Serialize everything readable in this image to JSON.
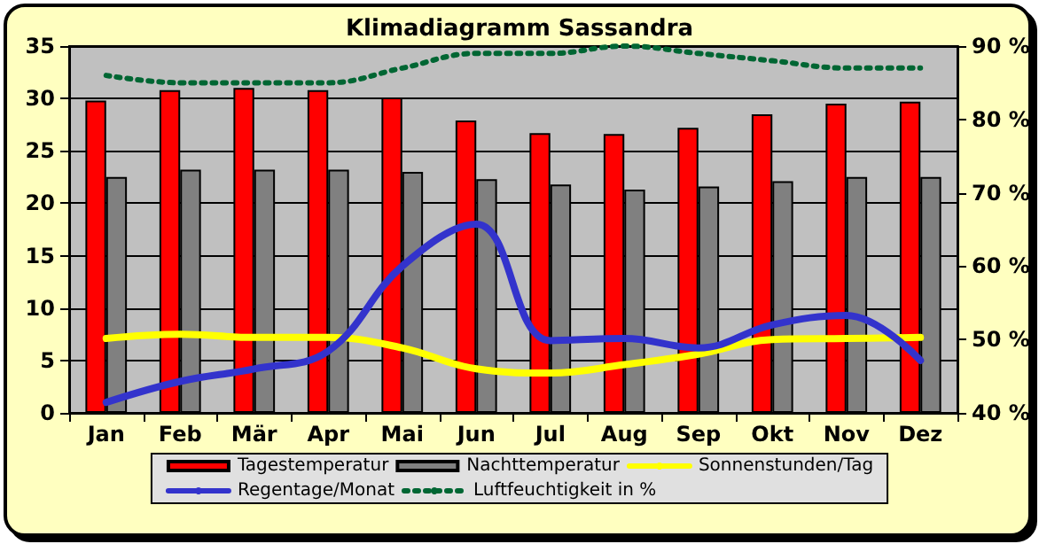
{
  "chart_data": {
    "type": "bar",
    "title": "Klimadiagramm Sassandra",
    "categories": [
      "Jan",
      "Feb",
      "Mär",
      "Apr",
      "Mai",
      "Jun",
      "Jul",
      "Aug",
      "Sep",
      "Okt",
      "Nov",
      "Dez"
    ],
    "series": [
      {
        "name": "Tagestemperatur",
        "color": "#ff0000",
        "values": [
          29.8,
          30.8,
          31.0,
          30.8,
          30.1,
          27.9,
          26.7,
          26.6,
          27.2,
          28.5,
          29.5,
          29.7
        ]
      },
      {
        "name": "Nachttemperatur",
        "color": "#808080",
        "values": [
          22.5,
          23.2,
          23.2,
          23.2,
          23.0,
          22.3,
          21.8,
          21.3,
          21.6,
          22.1,
          22.5,
          22.5
        ]
      },
      {
        "name": "Sonnenstunden/Tag",
        "type": "line",
        "color": "#ffff00",
        "line_style": "solid",
        "values": [
          7.1,
          7.5,
          7.2,
          7.2,
          6.2,
          4.2,
          3.8,
          4.6,
          5.6,
          7,
          7.1,
          7.2
        ]
      },
      {
        "name": "Regentage/Monat",
        "type": "line",
        "color": "#3333cc",
        "line_style": "solid",
        "values": [
          1,
          3,
          4.2,
          5.9,
          14,
          18,
          6.9,
          7.1,
          6.2,
          8.4,
          9.3,
          5
        ]
      },
      {
        "name": "Luftfeuchtigkeit in %",
        "type": "line",
        "axis": "y2",
        "color": "#006633",
        "line_style": "dotted",
        "values": [
          86,
          85,
          85,
          85,
          87,
          89,
          89,
          90,
          89,
          88,
          87,
          87
        ]
      }
    ],
    "ylim": [
      0,
      35
    ],
    "yticks": [
      0,
      5,
      10,
      15,
      20,
      25,
      30,
      35
    ],
    "y2lim": [
      40,
      90
    ],
    "y2ticks": [
      {
        "value": 40,
        "label": "40 %"
      },
      {
        "value": 50,
        "label": "50 %"
      },
      {
        "value": 60,
        "label": "60 %"
      },
      {
        "value": 70,
        "label": "70 %"
      },
      {
        "value": 80,
        "label": "80 %"
      },
      {
        "value": 90,
        "label": "90 %"
      }
    ],
    "grid": "y",
    "legend": "bottom",
    "marker": "none"
  }
}
